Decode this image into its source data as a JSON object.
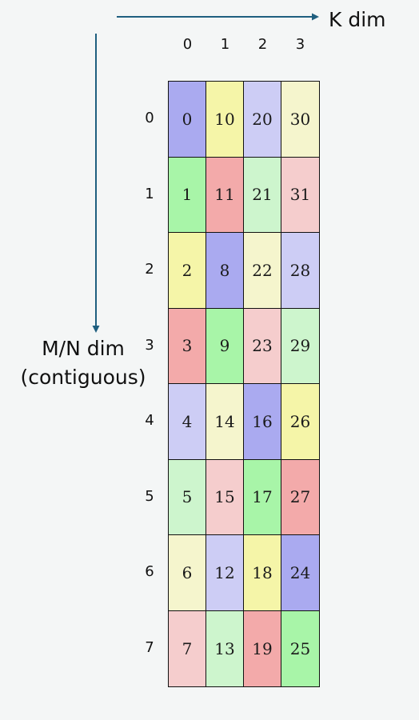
{
  "labels": {
    "k_dim": "K dim",
    "mn_dim_line1": "M/N dim",
    "mn_dim_line2": "(contiguous)"
  },
  "column_indices": [
    "0",
    "1",
    "2",
    "3"
  ],
  "row_indices": [
    "0",
    "1",
    "2",
    "3",
    "4",
    "5",
    "6",
    "7"
  ],
  "colors": {
    "arrow": "#1f5f7f",
    "purple": "#aaaaf0",
    "yellow": "#f5f5a8",
    "lavender": "#cdcdf5",
    "pale_yellow": "#f5f5cd",
    "green": "#a8f5a8",
    "red": "#f3aaaa",
    "pale_green": "#cdf5cd",
    "pale_red": "#f5cdcd"
  },
  "cells": [
    [
      {
        "v": "0",
        "c": "purple"
      },
      {
        "v": "10",
        "c": "yellow"
      },
      {
        "v": "20",
        "c": "lavender"
      },
      {
        "v": "30",
        "c": "pale_yellow"
      }
    ],
    [
      {
        "v": "1",
        "c": "green"
      },
      {
        "v": "11",
        "c": "red"
      },
      {
        "v": "21",
        "c": "pale_green"
      },
      {
        "v": "31",
        "c": "pale_red"
      }
    ],
    [
      {
        "v": "2",
        "c": "yellow"
      },
      {
        "v": "8",
        "c": "purple"
      },
      {
        "v": "22",
        "c": "pale_yellow"
      },
      {
        "v": "28",
        "c": "lavender"
      }
    ],
    [
      {
        "v": "3",
        "c": "red"
      },
      {
        "v": "9",
        "c": "green"
      },
      {
        "v": "23",
        "c": "pale_red"
      },
      {
        "v": "29",
        "c": "pale_green"
      }
    ],
    [
      {
        "v": "4",
        "c": "lavender"
      },
      {
        "v": "14",
        "c": "pale_yellow"
      },
      {
        "v": "16",
        "c": "purple"
      },
      {
        "v": "26",
        "c": "yellow"
      }
    ],
    [
      {
        "v": "5",
        "c": "pale_green"
      },
      {
        "v": "15",
        "c": "pale_red"
      },
      {
        "v": "17",
        "c": "green"
      },
      {
        "v": "27",
        "c": "red"
      }
    ],
    [
      {
        "v": "6",
        "c": "pale_yellow"
      },
      {
        "v": "12",
        "c": "lavender"
      },
      {
        "v": "18",
        "c": "yellow"
      },
      {
        "v": "24",
        "c": "purple"
      }
    ],
    [
      {
        "v": "7",
        "c": "pale_red"
      },
      {
        "v": "13",
        "c": "pale_green"
      },
      {
        "v": "19",
        "c": "red"
      },
      {
        "v": "25",
        "c": "green"
      }
    ]
  ]
}
